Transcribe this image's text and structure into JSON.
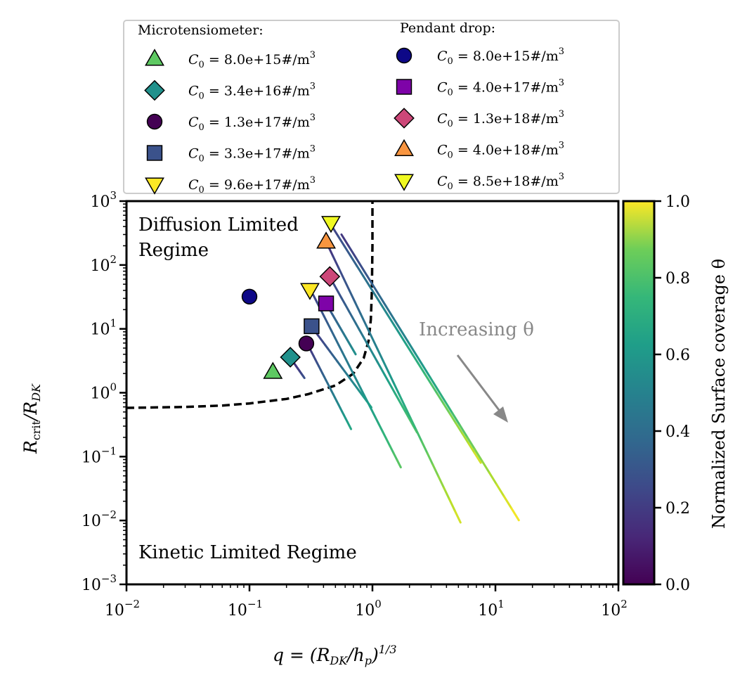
{
  "chart_data": {
    "type": "scatter",
    "xlabel": "q = (R_DK / h_p)^(1/3)",
    "ylabel": "R_crit / R_DK",
    "xscale": "log",
    "yscale": "log",
    "xlim": [
      0.01,
      100
    ],
    "ylim": [
      0.001,
      1000
    ],
    "x_ticks": [
      {
        "base": "10",
        "exp": "−2"
      },
      {
        "base": "10",
        "exp": "−1"
      },
      {
        "base": "10",
        "exp": "0"
      },
      {
        "base": "10",
        "exp": "1"
      },
      {
        "base": "10",
        "exp": "2"
      }
    ],
    "y_ticks": [
      {
        "base": "10",
        "exp": "−3"
      },
      {
        "base": "10",
        "exp": "−2"
      },
      {
        "base": "10",
        "exp": "−1"
      },
      {
        "base": "10",
        "exp": "0"
      },
      {
        "base": "10",
        "exp": "1"
      },
      {
        "base": "10",
        "exp": "2"
      },
      {
        "base": "10",
        "exp": "3"
      }
    ],
    "annotations": {
      "diffusion_line1": "Diffusion Limited",
      "diffusion_line2": "Regime",
      "kinetic": "Kinetic Limited Regime",
      "increasing": "Increasing θ"
    },
    "boundary_curve": {
      "style": "dashed",
      "x": [
        0.01,
        0.03,
        0.06,
        0.1,
        0.2,
        0.3,
        0.5,
        0.7,
        0.85,
        0.93,
        0.97,
        0.99,
        1.0,
        1.0
      ],
      "y": [
        0.58,
        0.6,
        0.63,
        0.68,
        0.8,
        0.95,
        1.3,
        2.0,
        3.5,
        6.5,
        14,
        40,
        200,
        1000
      ]
    },
    "colorbar": {
      "label": "Normalized Surface coverage θ",
      "range": [
        0.0,
        1.0
      ],
      "ticks": [
        "0.0",
        "0.2",
        "0.4",
        "0.6",
        "0.8",
        "1.0"
      ],
      "colormap": "viridis"
    },
    "legend": {
      "title_left": "Microtensiometer:",
      "title_right": "Pendant drop:",
      "left": [
        {
          "marker": "triangle-up",
          "color": "#5ec962",
          "label": "C0 = 8.0e+15#/m3"
        },
        {
          "marker": "diamond",
          "color": "#21918c",
          "label": "C0 = 3.4e+16#/m3"
        },
        {
          "marker": "circle",
          "color": "#440154",
          "label": "C0 = 1.3e+17#/m3"
        },
        {
          "marker": "square",
          "color": "#3b528b",
          "label": "C0 = 3.3e+17#/m3"
        },
        {
          "marker": "triangle-down",
          "color": "#fde725",
          "label": "C0 = 9.6e+17#/m3"
        }
      ],
      "right": [
        {
          "marker": "circle",
          "color": "#0d0887",
          "label": "C0 = 8.0e+15#/m3"
        },
        {
          "marker": "square",
          "color": "#7e03a8",
          "label": "C0 = 4.0e+17#/m3"
        },
        {
          "marker": "diamond",
          "color": "#cc4778",
          "label": "C0 = 1.3e+18#/m3"
        },
        {
          "marker": "triangle-up",
          "color": "#f89540",
          "label": "C0 = 4.0e+18#/m3"
        },
        {
          "marker": "triangle-down",
          "color": "#f0f921",
          "label": "C0 = 8.5e+18#/m3"
        }
      ]
    },
    "series": [
      {
        "name": "Microtensiometer C0 = 8.0e+15",
        "marker": "triangle-up",
        "color": "#5ec962",
        "point": {
          "x": 0.155,
          "y": 2.1
        },
        "trajectory": {
          "x0": 0.158,
          "y0": 2.1,
          "x1": 0.165,
          "y1": 2.0,
          "theta0": 0.12,
          "theta1": 0.15
        }
      },
      {
        "name": "Microtensiometer C0 = 3.4e+16",
        "marker": "diamond",
        "color": "#21918c",
        "point": {
          "x": 0.215,
          "y": 3.6
        },
        "trajectory": {
          "x0": 0.22,
          "y0": 3.3,
          "x1": 0.28,
          "y1": 1.7,
          "theta0": 0.1,
          "theta1": 0.25
        }
      },
      {
        "name": "Microtensiometer C0 = 1.3e+17",
        "marker": "circle",
        "color": "#440154",
        "point": {
          "x": 0.29,
          "y": 5.9
        },
        "trajectory": {
          "x0": 0.3,
          "y0": 5.5,
          "x1": 0.67,
          "y1": 0.27,
          "theta0": 0.15,
          "theta1": 0.6
        }
      },
      {
        "name": "Microtensiometer C0 = 3.3e+17",
        "marker": "square",
        "color": "#3b528b",
        "point": {
          "x": 0.32,
          "y": 11
        },
        "trajectory": {
          "x0": 0.33,
          "y0": 10,
          "x1": 0.98,
          "y1": 0.59,
          "theta0": 0.15,
          "theta1": 0.6
        }
      },
      {
        "name": "Microtensiometer C0 = 9.6e+17",
        "marker": "triangle-down",
        "color": "#fde725",
        "point": {
          "x": 0.31,
          "y": 41
        },
        "trajectory": {
          "x0": 0.33,
          "y0": 34,
          "x1": 1.7,
          "y1": 0.068,
          "theta0": 0.2,
          "theta1": 0.75
        }
      },
      {
        "name": "Pendant drop C0 = 8.0e+15",
        "marker": "circle",
        "color": "#0d0887",
        "point": {
          "x": 0.1,
          "y": 32
        },
        "trajectory": null
      },
      {
        "name": "Pendant drop C0 = 4.0e+17",
        "marker": "square",
        "color": "#7e03a8",
        "point": {
          "x": 0.42,
          "y": 25
        },
        "trajectory": {
          "x0": 0.43,
          "y0": 23,
          "x1": 0.73,
          "y1": 4.0,
          "theta0": 0.25,
          "theta1": 0.5
        }
      },
      {
        "name": "Pendant drop C0 = 1.3e+18",
        "marker": "diamond",
        "color": "#cc4778",
        "point": {
          "x": 0.45,
          "y": 66
        },
        "trajectory": {
          "x0": 0.46,
          "y0": 60,
          "x1": 2.3,
          "y1": 0.24,
          "theta0": 0.2,
          "theta1": 0.75
        }
      },
      {
        "name": "Pendant drop C0 = 4.0e+18",
        "marker": "triangle-up",
        "color": "#f89540",
        "point": {
          "x": 0.42,
          "y": 230
        },
        "trajectory": {
          "x0": 0.43,
          "y0": 210,
          "x1": 5.2,
          "y1": 0.0093,
          "theta0": 0.15,
          "theta1": 0.95
        }
      },
      {
        "name": "Pendant drop C0 = 8.5e+18",
        "marker": "triangle-down",
        "color": "#f0f921",
        "point": {
          "x": 0.46,
          "y": 460
        },
        "trajectory": {
          "x0": 0.47,
          "y0": 400,
          "x1": 7.6,
          "y1": 0.08,
          "theta0": 0.2,
          "theta1": 0.95
        }
      },
      {
        "name": "Pendant drop C0 = 8.5e+18 (extended)",
        "marker": "none",
        "color": "#f0f921",
        "point": null,
        "trajectory": {
          "x0": 0.56,
          "y0": 300,
          "x1": 15.5,
          "y1": 0.0101,
          "theta0": 0.15,
          "theta1": 1.0
        }
      }
    ]
  }
}
